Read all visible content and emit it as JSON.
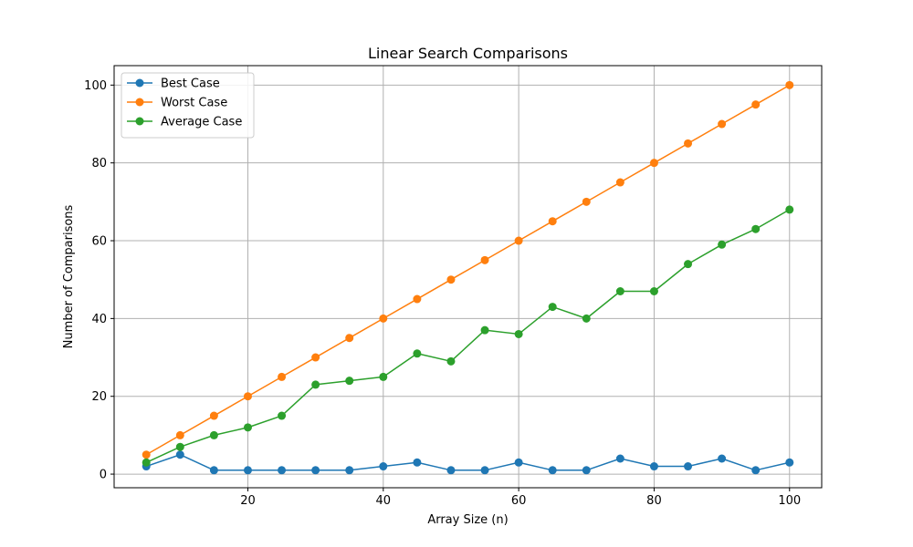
{
  "chart_data": {
    "type": "line",
    "title": "Linear Search Comparisons",
    "xlabel": "Array Size (n)",
    "ylabel": "Number of Comparisons",
    "x": [
      5,
      10,
      15,
      20,
      25,
      30,
      35,
      40,
      45,
      50,
      55,
      60,
      65,
      70,
      75,
      80,
      85,
      90,
      95,
      100
    ],
    "xlim": [
      0.25,
      104.75
    ],
    "ylim": [
      -3.5,
      105
    ],
    "xticks": [
      20,
      40,
      60,
      80,
      100
    ],
    "yticks": [
      0,
      20,
      40,
      60,
      80,
      100
    ],
    "grid": true,
    "legend_position": "top-left",
    "series": [
      {
        "name": "Best Case",
        "color": "#1f77b4",
        "values": [
          2,
          5,
          1,
          1,
          1,
          1,
          1,
          2,
          3,
          1,
          1,
          3,
          1,
          1,
          4,
          2,
          2,
          4,
          1,
          3
        ]
      },
      {
        "name": "Worst Case",
        "color": "#ff7f0e",
        "values": [
          5,
          10,
          15,
          20,
          25,
          30,
          35,
          40,
          45,
          50,
          55,
          60,
          65,
          70,
          75,
          80,
          85,
          90,
          95,
          100
        ]
      },
      {
        "name": "Average Case",
        "color": "#2ca02c",
        "values": [
          3,
          7,
          10,
          12,
          15,
          23,
          24,
          25,
          31,
          29,
          37,
          36,
          43,
          40,
          47,
          47,
          54,
          59,
          63,
          68
        ]
      }
    ]
  }
}
